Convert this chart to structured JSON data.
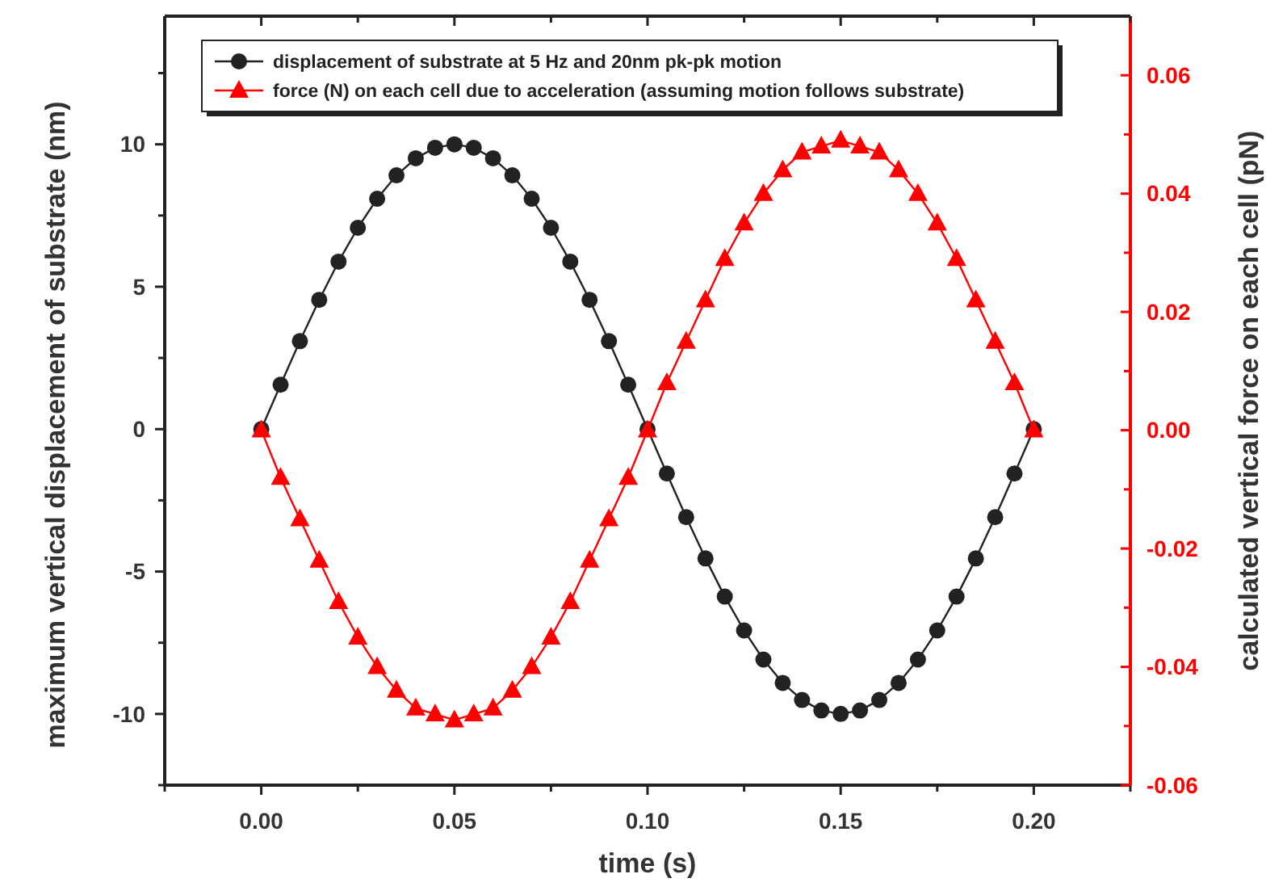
{
  "chart_data": {
    "type": "line",
    "xlabel": "time (s)",
    "ylabel": "maximum vertical displacement of substrate (nm)",
    "y2label": "calculated vertical force on each cell (pN)",
    "x": [
      0,
      0.005,
      0.01,
      0.015,
      0.02,
      0.025,
      0.03,
      0.035,
      0.04,
      0.045,
      0.05,
      0.055,
      0.06,
      0.065,
      0.07,
      0.075,
      0.08,
      0.085,
      0.09,
      0.095,
      0.1,
      0.105,
      0.11,
      0.115,
      0.12,
      0.125,
      0.13,
      0.135,
      0.14,
      0.145,
      0.15,
      0.155,
      0.16,
      0.165,
      0.17,
      0.175,
      0.18,
      0.185,
      0.19,
      0.195,
      0.2
    ],
    "series": [
      {
        "name": "displacement of substrate at 5 Hz and 20nm pk-pk motion",
        "color": "#222222",
        "marker": "circle",
        "values": [
          0,
          1.56,
          3.09,
          4.54,
          5.88,
          7.07,
          8.09,
          8.91,
          9.51,
          9.88,
          10,
          9.88,
          9.51,
          8.91,
          8.09,
          7.07,
          5.88,
          4.54,
          3.09,
          1.56,
          0,
          -1.56,
          -3.09,
          -4.54,
          -5.88,
          -7.07,
          -8.09,
          -8.91,
          -9.51,
          -9.88,
          -10,
          -9.88,
          -9.51,
          -8.91,
          -8.09,
          -7.07,
          -5.88,
          -4.54,
          -3.09,
          -1.56,
          0
        ]
      },
      {
        "name": "force (N) on each cell due to acceleration (assuming motion follows substrate)",
        "color": "#ff0000",
        "marker": "triangle",
        "axis": "y2",
        "values": [
          0,
          -0.008,
          -0.015,
          -0.022,
          -0.029,
          -0.035,
          -0.04,
          -0.044,
          -0.047,
          -0.048,
          -0.049,
          -0.048,
          -0.047,
          -0.044,
          -0.04,
          -0.035,
          -0.029,
          -0.022,
          -0.015,
          -0.008,
          0,
          0.008,
          0.015,
          0.022,
          0.029,
          0.035,
          0.04,
          0.044,
          0.047,
          0.048,
          0.049,
          0.048,
          0.047,
          0.044,
          0.04,
          0.035,
          0.029,
          0.022,
          0.015,
          0.008,
          0
        ]
      }
    ],
    "xlim": [
      -0.025,
      0.225
    ],
    "xticks": [
      {
        "value": -0.025,
        "label": null
      },
      {
        "value": 0,
        "label": "0.00"
      },
      {
        "value": 0.025,
        "label": null
      },
      {
        "value": 0.05,
        "label": "0.05"
      },
      {
        "value": 0.075,
        "label": null
      },
      {
        "value": 0.1,
        "label": "0.10"
      },
      {
        "value": 0.125,
        "label": null
      },
      {
        "value": 0.15,
        "label": "0.15"
      },
      {
        "value": 0.175,
        "label": null
      },
      {
        "value": 0.2,
        "label": "0.20"
      },
      {
        "value": 0.225,
        "label": null
      }
    ],
    "ylim": [
      -12.5,
      14.5
    ],
    "yticks": [
      {
        "value": -12.5,
        "label": null
      },
      -10,
      {
        "value": -7.5,
        "label": null
      },
      -5,
      {
        "value": -2.5,
        "label": null
      },
      0,
      {
        "value": 2.5,
        "label": null
      },
      5,
      {
        "value": 7.5,
        "label": null
      },
      10,
      {
        "value": 12.5,
        "label": null
      }
    ],
    "y2lim": [
      -0.06,
      0.07
    ],
    "y2ticks": [
      {
        "value": -0.06,
        "label": "-0.06"
      },
      {
        "value": -0.05,
        "label": null
      },
      {
        "value": -0.04,
        "label": "-0.04"
      },
      {
        "value": -0.03,
        "label": null
      },
      {
        "value": -0.02,
        "label": "-0.02"
      },
      {
        "value": -0.01,
        "label": null
      },
      {
        "value": 0,
        "label": "0.00"
      },
      {
        "value": 0.01,
        "label": null
      },
      {
        "value": 0.02,
        "label": "0.02"
      },
      {
        "value": 0.03,
        "label": null
      },
      {
        "value": 0.04,
        "label": "0.04"
      },
      {
        "value": 0.05,
        "label": null
      },
      {
        "value": 0.06,
        "label": "0.06"
      }
    ],
    "grid": false,
    "legend": "top left",
    "line_style": "solid"
  }
}
